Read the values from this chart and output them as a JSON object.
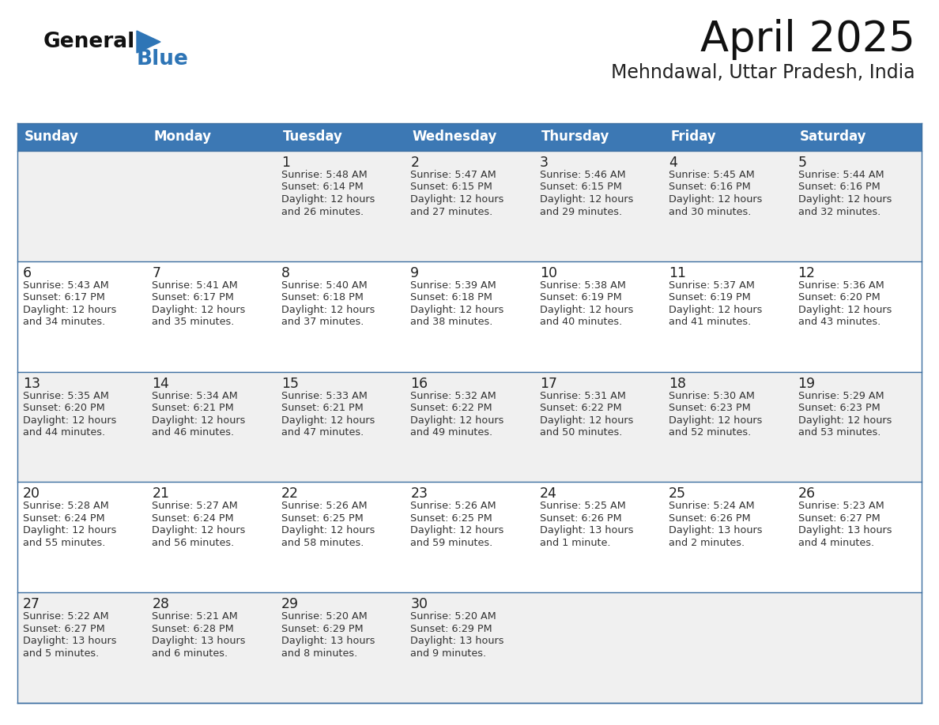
{
  "title": "April 2025",
  "subtitle": "Mehndawal, Uttar Pradesh, India",
  "header_bg_color": "#3c78b4",
  "header_text_color": "#ffffff",
  "row_bg_even": "#f0f0f0",
  "row_bg_odd": "#ffffff",
  "text_color": "#333333",
  "day_number_color": "#222222",
  "border_color": "#3c6ea0",
  "days_of_week": [
    "Sunday",
    "Monday",
    "Tuesday",
    "Wednesday",
    "Thursday",
    "Friday",
    "Saturday"
  ],
  "logo_general_color": "#111111",
  "logo_blue_color": "#2e75b6",
  "calendar": [
    [
      {
        "day": "",
        "sunrise": "",
        "sunset": "",
        "daylight": ""
      },
      {
        "day": "",
        "sunrise": "",
        "sunset": "",
        "daylight": ""
      },
      {
        "day": "1",
        "sunrise": "Sunrise: 5:48 AM",
        "sunset": "Sunset: 6:14 PM",
        "daylight": "Daylight: 12 hours\nand 26 minutes."
      },
      {
        "day": "2",
        "sunrise": "Sunrise: 5:47 AM",
        "sunset": "Sunset: 6:15 PM",
        "daylight": "Daylight: 12 hours\nand 27 minutes."
      },
      {
        "day": "3",
        "sunrise": "Sunrise: 5:46 AM",
        "sunset": "Sunset: 6:15 PM",
        "daylight": "Daylight: 12 hours\nand 29 minutes."
      },
      {
        "day": "4",
        "sunrise": "Sunrise: 5:45 AM",
        "sunset": "Sunset: 6:16 PM",
        "daylight": "Daylight: 12 hours\nand 30 minutes."
      },
      {
        "day": "5",
        "sunrise": "Sunrise: 5:44 AM",
        "sunset": "Sunset: 6:16 PM",
        "daylight": "Daylight: 12 hours\nand 32 minutes."
      }
    ],
    [
      {
        "day": "6",
        "sunrise": "Sunrise: 5:43 AM",
        "sunset": "Sunset: 6:17 PM",
        "daylight": "Daylight: 12 hours\nand 34 minutes."
      },
      {
        "day": "7",
        "sunrise": "Sunrise: 5:41 AM",
        "sunset": "Sunset: 6:17 PM",
        "daylight": "Daylight: 12 hours\nand 35 minutes."
      },
      {
        "day": "8",
        "sunrise": "Sunrise: 5:40 AM",
        "sunset": "Sunset: 6:18 PM",
        "daylight": "Daylight: 12 hours\nand 37 minutes."
      },
      {
        "day": "9",
        "sunrise": "Sunrise: 5:39 AM",
        "sunset": "Sunset: 6:18 PM",
        "daylight": "Daylight: 12 hours\nand 38 minutes."
      },
      {
        "day": "10",
        "sunrise": "Sunrise: 5:38 AM",
        "sunset": "Sunset: 6:19 PM",
        "daylight": "Daylight: 12 hours\nand 40 minutes."
      },
      {
        "day": "11",
        "sunrise": "Sunrise: 5:37 AM",
        "sunset": "Sunset: 6:19 PM",
        "daylight": "Daylight: 12 hours\nand 41 minutes."
      },
      {
        "day": "12",
        "sunrise": "Sunrise: 5:36 AM",
        "sunset": "Sunset: 6:20 PM",
        "daylight": "Daylight: 12 hours\nand 43 minutes."
      }
    ],
    [
      {
        "day": "13",
        "sunrise": "Sunrise: 5:35 AM",
        "sunset": "Sunset: 6:20 PM",
        "daylight": "Daylight: 12 hours\nand 44 minutes."
      },
      {
        "day": "14",
        "sunrise": "Sunrise: 5:34 AM",
        "sunset": "Sunset: 6:21 PM",
        "daylight": "Daylight: 12 hours\nand 46 minutes."
      },
      {
        "day": "15",
        "sunrise": "Sunrise: 5:33 AM",
        "sunset": "Sunset: 6:21 PM",
        "daylight": "Daylight: 12 hours\nand 47 minutes."
      },
      {
        "day": "16",
        "sunrise": "Sunrise: 5:32 AM",
        "sunset": "Sunset: 6:22 PM",
        "daylight": "Daylight: 12 hours\nand 49 minutes."
      },
      {
        "day": "17",
        "sunrise": "Sunrise: 5:31 AM",
        "sunset": "Sunset: 6:22 PM",
        "daylight": "Daylight: 12 hours\nand 50 minutes."
      },
      {
        "day": "18",
        "sunrise": "Sunrise: 5:30 AM",
        "sunset": "Sunset: 6:23 PM",
        "daylight": "Daylight: 12 hours\nand 52 minutes."
      },
      {
        "day": "19",
        "sunrise": "Sunrise: 5:29 AM",
        "sunset": "Sunset: 6:23 PM",
        "daylight": "Daylight: 12 hours\nand 53 minutes."
      }
    ],
    [
      {
        "day": "20",
        "sunrise": "Sunrise: 5:28 AM",
        "sunset": "Sunset: 6:24 PM",
        "daylight": "Daylight: 12 hours\nand 55 minutes."
      },
      {
        "day": "21",
        "sunrise": "Sunrise: 5:27 AM",
        "sunset": "Sunset: 6:24 PM",
        "daylight": "Daylight: 12 hours\nand 56 minutes."
      },
      {
        "day": "22",
        "sunrise": "Sunrise: 5:26 AM",
        "sunset": "Sunset: 6:25 PM",
        "daylight": "Daylight: 12 hours\nand 58 minutes."
      },
      {
        "day": "23",
        "sunrise": "Sunrise: 5:26 AM",
        "sunset": "Sunset: 6:25 PM",
        "daylight": "Daylight: 12 hours\nand 59 minutes."
      },
      {
        "day": "24",
        "sunrise": "Sunrise: 5:25 AM",
        "sunset": "Sunset: 6:26 PM",
        "daylight": "Daylight: 13 hours\nand 1 minute."
      },
      {
        "day": "25",
        "sunrise": "Sunrise: 5:24 AM",
        "sunset": "Sunset: 6:26 PM",
        "daylight": "Daylight: 13 hours\nand 2 minutes."
      },
      {
        "day": "26",
        "sunrise": "Sunrise: 5:23 AM",
        "sunset": "Sunset: 6:27 PM",
        "daylight": "Daylight: 13 hours\nand 4 minutes."
      }
    ],
    [
      {
        "day": "27",
        "sunrise": "Sunrise: 5:22 AM",
        "sunset": "Sunset: 6:27 PM",
        "daylight": "Daylight: 13 hours\nand 5 minutes."
      },
      {
        "day": "28",
        "sunrise": "Sunrise: 5:21 AM",
        "sunset": "Sunset: 6:28 PM",
        "daylight": "Daylight: 13 hours\nand 6 minutes."
      },
      {
        "day": "29",
        "sunrise": "Sunrise: 5:20 AM",
        "sunset": "Sunset: 6:29 PM",
        "daylight": "Daylight: 13 hours\nand 8 minutes."
      },
      {
        "day": "30",
        "sunrise": "Sunrise: 5:20 AM",
        "sunset": "Sunset: 6:29 PM",
        "daylight": "Daylight: 13 hours\nand 9 minutes."
      },
      {
        "day": "",
        "sunrise": "",
        "sunset": "",
        "daylight": ""
      },
      {
        "day": "",
        "sunrise": "",
        "sunset": "",
        "daylight": ""
      },
      {
        "day": "",
        "sunrise": "",
        "sunset": "",
        "daylight": ""
      }
    ]
  ]
}
